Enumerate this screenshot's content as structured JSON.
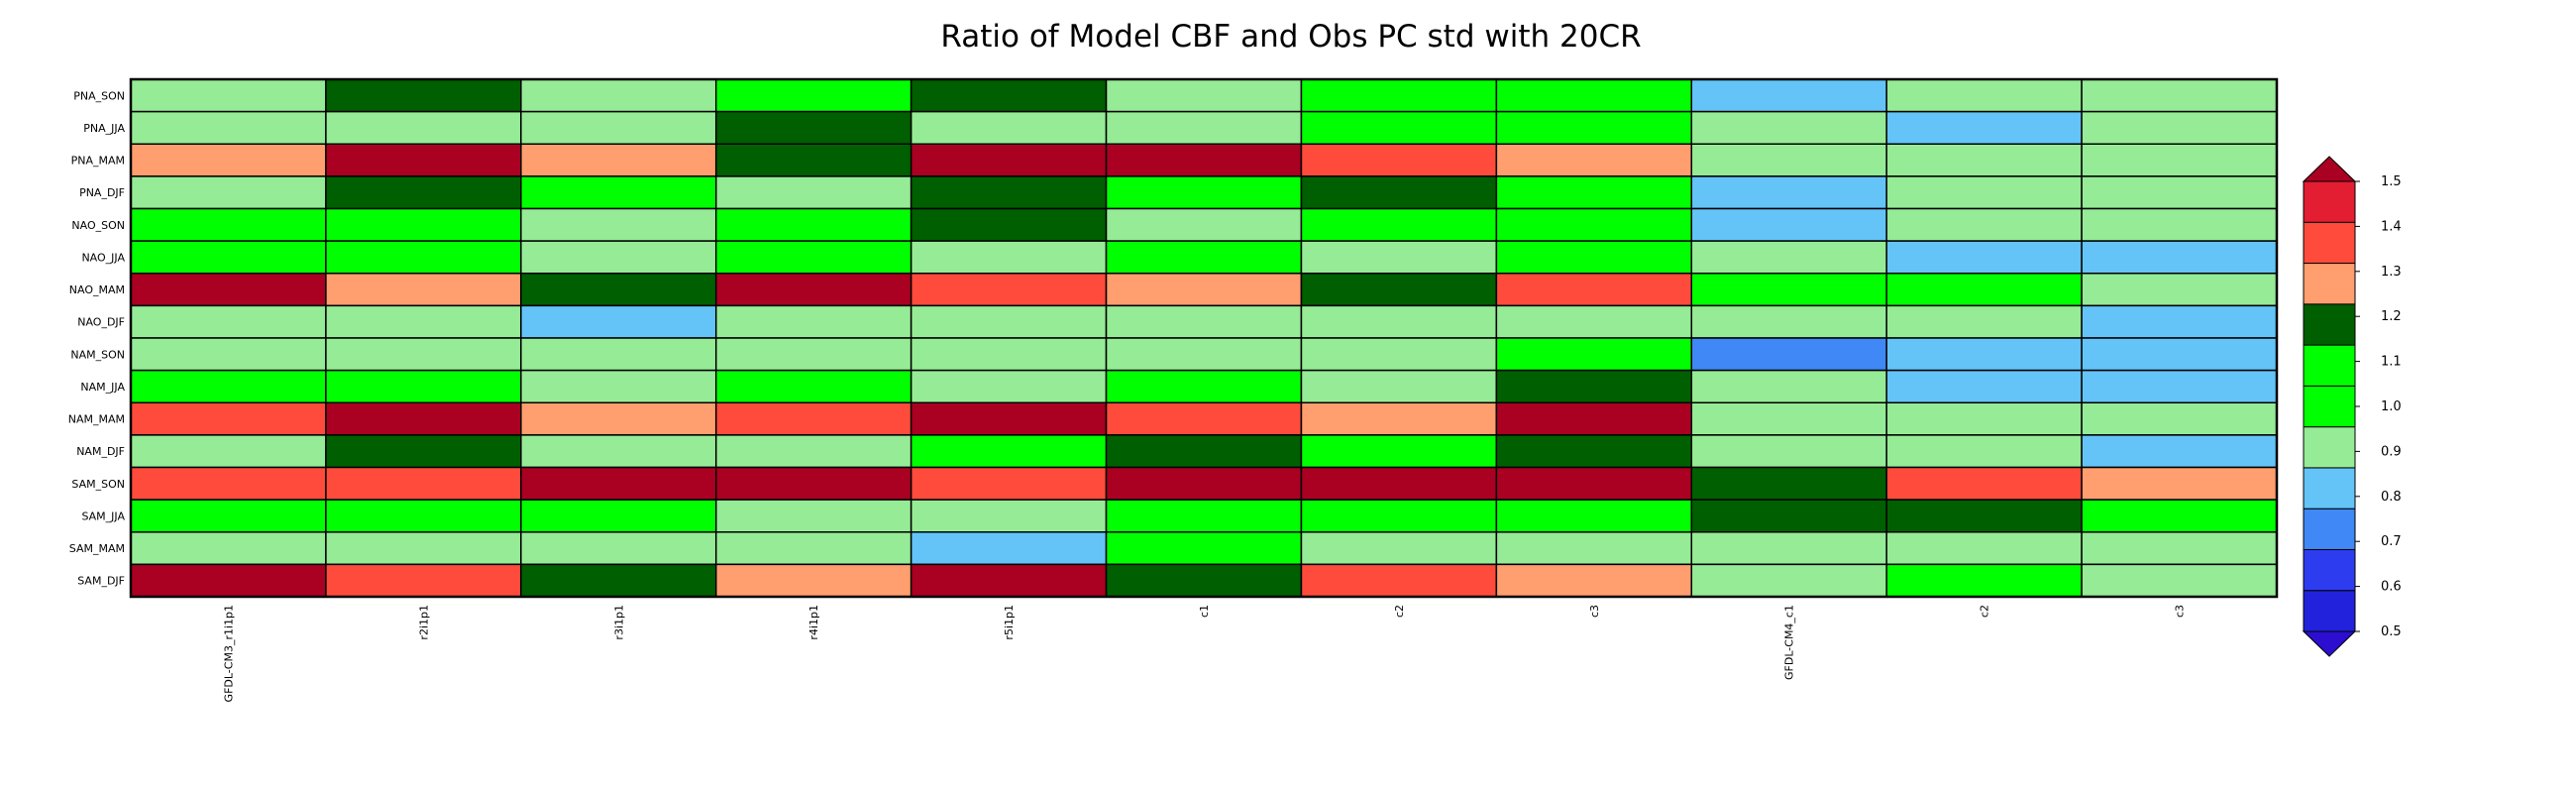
{
  "chart_data": {
    "type": "heatmap",
    "title": "Ratio of Model CBF and Obs PC std with 20CR",
    "rows": [
      "PNA_SON",
      "PNA_JJA",
      "PNA_MAM",
      "PNA_DJF",
      "NAO_SON",
      "NAO_JJA",
      "NAO_MAM",
      "NAO_DJF",
      "NAM_SON",
      "NAM_JJA",
      "NAM_MAM",
      "NAM_DJF",
      "SAM_SON",
      "SAM_JJA",
      "SAM_MAM",
      "SAM_DJF"
    ],
    "columns": [
      "GFDL-CM3_r1i1p1",
      "r2i1p1",
      "r3i1p1",
      "r4i1p1",
      "r5i1p1",
      "c1",
      "c2",
      "c3",
      "GFDL-CM4_c1",
      "c2",
      "c3"
    ],
    "values": [
      [
        0.95,
        1.25,
        0.95,
        1.05,
        1.25,
        0.95,
        1.05,
        1.05,
        0.85,
        0.95,
        0.95
      ],
      [
        0.95,
        0.95,
        0.95,
        1.25,
        0.95,
        0.95,
        1.05,
        1.05,
        0.95,
        0.85,
        0.95
      ],
      [
        1.35,
        1.55,
        1.35,
        1.25,
        1.55,
        1.55,
        1.45,
        1.35,
        0.95,
        0.95,
        0.95
      ],
      [
        0.95,
        1.25,
        1.05,
        0.95,
        1.25,
        1.05,
        1.25,
        1.05,
        0.85,
        0.95,
        0.95
      ],
      [
        1.05,
        1.05,
        0.95,
        1.05,
        1.25,
        0.95,
        1.05,
        1.05,
        0.85,
        0.95,
        0.95
      ],
      [
        1.05,
        1.05,
        0.95,
        1.05,
        0.95,
        1.05,
        0.95,
        1.05,
        0.95,
        0.85,
        0.85
      ],
      [
        1.55,
        1.35,
        1.25,
        1.55,
        1.45,
        1.35,
        1.25,
        1.45,
        1.05,
        1.05,
        0.95
      ],
      [
        0.95,
        0.95,
        0.85,
        0.95,
        0.95,
        0.95,
        0.95,
        0.95,
        0.95,
        0.95,
        0.85
      ],
      [
        0.95,
        0.95,
        0.95,
        0.95,
        0.95,
        0.95,
        0.95,
        1.05,
        0.75,
        0.85,
        0.85
      ],
      [
        1.05,
        1.05,
        0.95,
        1.05,
        0.95,
        1.05,
        0.95,
        1.25,
        0.95,
        0.85,
        0.85
      ],
      [
        1.45,
        1.55,
        1.35,
        1.45,
        1.55,
        1.45,
        1.35,
        1.55,
        0.95,
        0.95,
        0.95
      ],
      [
        0.95,
        1.25,
        0.95,
        0.95,
        1.05,
        1.25,
        1.05,
        1.25,
        0.95,
        0.95,
        0.85
      ],
      [
        1.45,
        1.45,
        1.55,
        1.55,
        1.45,
        1.55,
        1.55,
        1.55,
        1.25,
        1.45,
        1.35
      ],
      [
        1.05,
        1.05,
        1.05,
        0.95,
        0.95,
        1.05,
        1.05,
        1.05,
        1.25,
        1.25,
        1.05
      ],
      [
        0.95,
        0.95,
        0.95,
        0.95,
        0.85,
        1.05,
        0.95,
        0.95,
        0.95,
        0.95,
        0.95
      ],
      [
        1.55,
        1.45,
        1.25,
        1.35,
        1.55,
        1.25,
        1.45,
        1.35,
        0.95,
        1.05,
        0.95
      ]
    ],
    "colorbar": {
      "ticks": [
        "0.5",
        "0.6",
        "0.7",
        "0.8",
        "0.9",
        "1.0",
        "1.1",
        "1.2",
        "1.3",
        "1.4",
        "1.5"
      ],
      "boundaries": [
        0.5,
        0.6,
        0.7,
        0.8,
        0.9,
        1.0,
        1.1,
        1.2,
        1.3,
        1.4,
        1.5
      ],
      "colors": [
        "#2222dd",
        "#2e3cf0",
        "#3f88f5",
        "#64c4f8",
        "#96eb96",
        "#00ff00",
        "#00ff00",
        "#005f00",
        "#ff9e6e",
        "#ff4b3c",
        "#e31e32"
      ],
      "under_color": "#2b0ecf",
      "over_color": "#aa0022"
    },
    "colorbar_position": "right",
    "grid": true
  }
}
